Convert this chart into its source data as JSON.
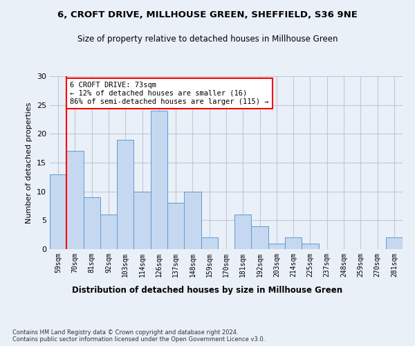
{
  "title1": "6, CROFT DRIVE, MILLHOUSE GREEN, SHEFFIELD, S36 9NE",
  "title2": "Size of property relative to detached houses in Millhouse Green",
  "xlabel": "Distribution of detached houses by size in Millhouse Green",
  "ylabel": "Number of detached properties",
  "categories": [
    "59sqm",
    "70sqm",
    "81sqm",
    "92sqm",
    "103sqm",
    "114sqm",
    "126sqm",
    "137sqm",
    "148sqm",
    "159sqm",
    "170sqm",
    "181sqm",
    "192sqm",
    "203sqm",
    "214sqm",
    "225sqm",
    "237sqm",
    "248sqm",
    "259sqm",
    "270sqm",
    "281sqm"
  ],
  "values": [
    13,
    17,
    9,
    6,
    19,
    10,
    24,
    8,
    10,
    2,
    0,
    6,
    4,
    1,
    2,
    1,
    0,
    0,
    0,
    0,
    2
  ],
  "bar_color": "#c5d8f0",
  "bar_edge_color": "#5b9bd5",
  "grid_color": "#c0c8d8",
  "background_color": "#eaf0f8",
  "property_line_x": 1,
  "annotation_text": "6 CROFT DRIVE: 73sqm\n← 12% of detached houses are smaller (16)\n86% of semi-detached houses are larger (115) →",
  "annotation_box_color": "white",
  "annotation_box_edge_color": "red",
  "property_line_color": "red",
  "ylim": [
    0,
    30
  ],
  "yticks": [
    0,
    5,
    10,
    15,
    20,
    25,
    30
  ],
  "footnote": "Contains HM Land Registry data © Crown copyright and database right 2024.\nContains public sector information licensed under the Open Government Licence v3.0."
}
